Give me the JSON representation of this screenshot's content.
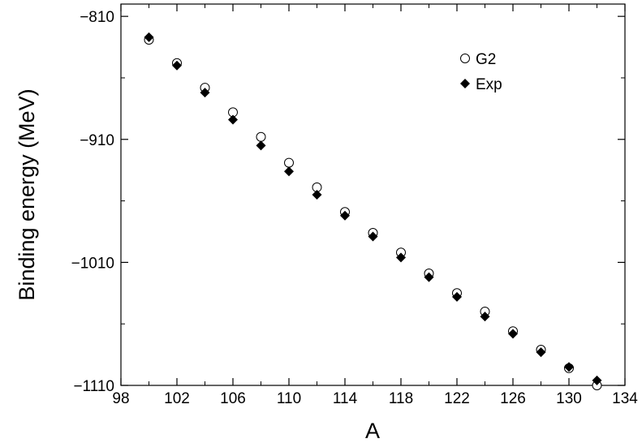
{
  "chart_data": {
    "type": "scatter",
    "title": "",
    "xlabel": "A",
    "ylabel": "Binding energy (MeV)",
    "xlim": [
      98,
      134
    ],
    "ylim": [
      -1110,
      -800
    ],
    "x_ticks": [
      98,
      102,
      106,
      110,
      114,
      118,
      122,
      126,
      130,
      134
    ],
    "y_ticks": [
      -810,
      -910,
      -1010,
      -1110
    ],
    "grid": false,
    "legend_position": "top-right",
    "series": [
      {
        "name": "G2",
        "marker": "open-circle",
        "color": "#000000",
        "x": [
          100,
          102,
          104,
          106,
          108,
          110,
          112,
          114,
          116,
          118,
          120,
          122,
          124,
          126,
          128,
          130,
          132
        ],
        "y": [
          -829,
          -848,
          -868,
          -888,
          -908,
          -929,
          -949,
          -969,
          -986,
          -1002,
          -1019,
          -1035,
          -1050,
          -1066,
          -1081,
          -1096,
          -1110
        ]
      },
      {
        "name": "Exp",
        "marker": "filled-diamond",
        "color": "#000000",
        "x": [
          100,
          102,
          104,
          106,
          108,
          110,
          112,
          114,
          116,
          118,
          120,
          122,
          124,
          126,
          128,
          130,
          132
        ],
        "y": [
          -827,
          -850,
          -872,
          -894,
          -915,
          -936,
          -955,
          -972,
          -989,
          -1006,
          -1022,
          -1038,
          -1054,
          -1068,
          -1083,
          -1095,
          -1106
        ]
      }
    ]
  }
}
